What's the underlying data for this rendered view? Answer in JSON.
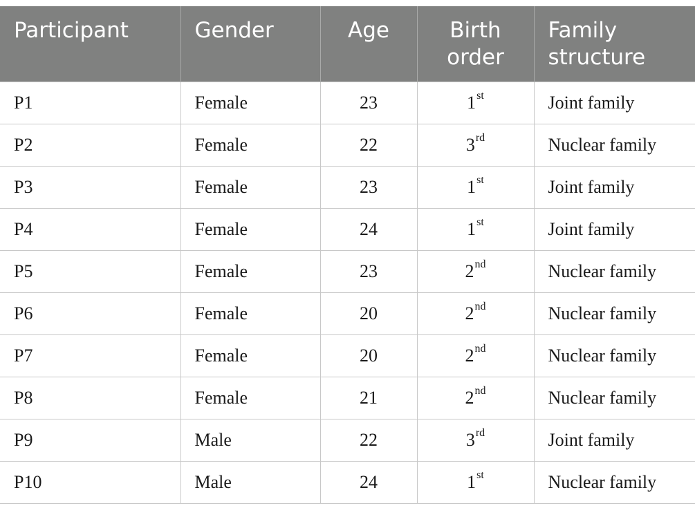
{
  "table": {
    "headers": [
      {
        "line1": "Participant",
        "line2": ""
      },
      {
        "line1": "Gender",
        "line2": ""
      },
      {
        "line1": "Age",
        "line2": ""
      },
      {
        "line1": "Birth",
        "line2": "order"
      },
      {
        "line1": "Family",
        "line2": "structure"
      }
    ],
    "header_color": "#808180",
    "rows": [
      {
        "participant": "P1",
        "gender": "Female",
        "age": "23",
        "order_num": "1",
        "order_suffix": "st",
        "family": "Joint family"
      },
      {
        "participant": "P2",
        "gender": "Female",
        "age": "22",
        "order_num": "3",
        "order_suffix": "rd",
        "family": "Nuclear family"
      },
      {
        "participant": "P3",
        "gender": "Female",
        "age": "23",
        "order_num": "1",
        "order_suffix": "st",
        "family": "Joint family"
      },
      {
        "participant": "P4",
        "gender": "Female",
        "age": "24",
        "order_num": "1",
        "order_suffix": "st",
        "family": "Joint family"
      },
      {
        "participant": "P5",
        "gender": "Female",
        "age": "23",
        "order_num": "2",
        "order_suffix": "nd",
        "family": "Nuclear family"
      },
      {
        "participant": "P6",
        "gender": "Female",
        "age": "20",
        "order_num": "2",
        "order_suffix": "nd",
        "family": "Nuclear family"
      },
      {
        "participant": "P7",
        "gender": "Female",
        "age": "20",
        "order_num": "2",
        "order_suffix": "nd",
        "family": "Nuclear family"
      },
      {
        "participant": "P8",
        "gender": "Female",
        "age": "21",
        "order_num": "2",
        "order_suffix": "nd",
        "family": "Nuclear family"
      },
      {
        "participant": "P9",
        "gender": "Male",
        "age": "22",
        "order_num": "3",
        "order_suffix": "rd",
        "family": "Joint family"
      },
      {
        "participant": "P10",
        "gender": "Male",
        "age": "24",
        "order_num": "1",
        "order_suffix": "st",
        "family": "Nuclear family"
      }
    ]
  }
}
